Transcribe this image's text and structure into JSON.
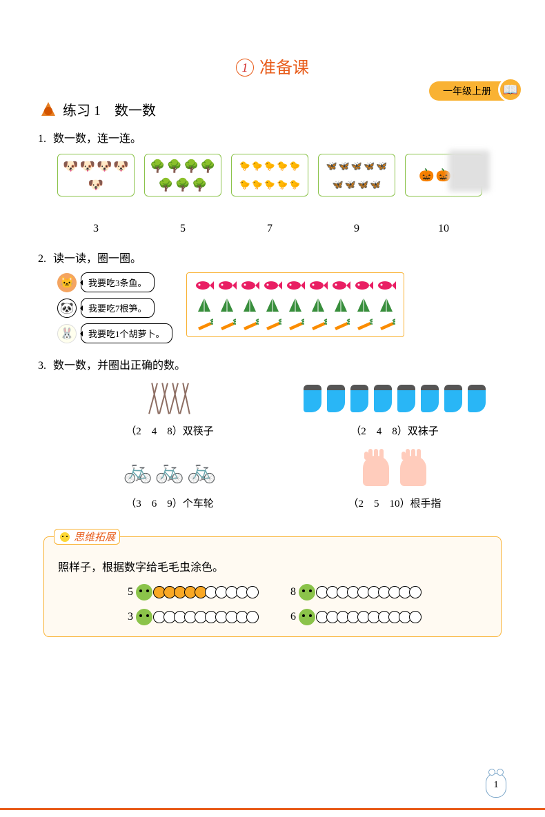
{
  "badge": {
    "text": "一年级上册",
    "icon": "📖"
  },
  "chapter": {
    "number": "1",
    "title": "准备课",
    "color": "#e85c1a"
  },
  "practice": {
    "label": "练习 1　数一数"
  },
  "q1": {
    "prompt": "数一数，连一连。",
    "boxes": [
      {
        "emoji": "🐶",
        "count": 5,
        "color": "#8d6e63"
      },
      {
        "emoji": "🌳",
        "count": 7,
        "color": "#2e7d32"
      },
      {
        "emoji": "🐤",
        "count": 10,
        "color": "#fbc02d"
      },
      {
        "emoji": "🦋",
        "count": 9,
        "color": "#42a5f5"
      },
      {
        "emoji": "🎃",
        "count": 3,
        "color": "#ef6c00"
      }
    ],
    "numbers": [
      "3",
      "5",
      "7",
      "9",
      "10"
    ]
  },
  "q2": {
    "prompt": "读一读，圈一圈。",
    "bubbles": [
      {
        "animal": "cat",
        "text": "我要吃3条鱼。"
      },
      {
        "animal": "panda",
        "text": "我要吃7根笋。"
      },
      {
        "animal": "bunny",
        "text": "我要吃1个胡萝卜。"
      }
    ],
    "food_rows": [
      {
        "type": "fish",
        "count": 9,
        "color": "#e91e63"
      },
      {
        "type": "bamboo",
        "count": 9,
        "color": "#388e3c"
      },
      {
        "type": "carrot",
        "count": 9,
        "color": "#fb8c00"
      }
    ]
  },
  "q3": {
    "prompt": "数一数，并圈出正确的数。",
    "items": [
      {
        "kind": "chopsticks",
        "count": 8,
        "options": "（2　4　8）",
        "unit": "双筷子"
      },
      {
        "kind": "socks",
        "count": 8,
        "options": "（2　4　8）",
        "unit": "双袜子"
      },
      {
        "kind": "tricycles",
        "count": 3,
        "options": "（3　6　9）",
        "unit": "个车轮"
      },
      {
        "kind": "hands",
        "count": 2,
        "options": "（2　5　10）",
        "unit": "根手指"
      }
    ]
  },
  "extend": {
    "tag": "思维拓展",
    "text": "照样子，根据数字给毛毛虫涂色。",
    "caterpillars": [
      {
        "num": "5",
        "total": 10,
        "filled": 5
      },
      {
        "num": "8",
        "total": 10,
        "filled": 0
      },
      {
        "num": "3",
        "total": 10,
        "filled": 0
      },
      {
        "num": "6",
        "total": 10,
        "filled": 0
      }
    ]
  },
  "page_number": "1",
  "colors": {
    "accent": "#e85c1a",
    "badge": "#f9b233",
    "box_border": "#8bc34a"
  }
}
